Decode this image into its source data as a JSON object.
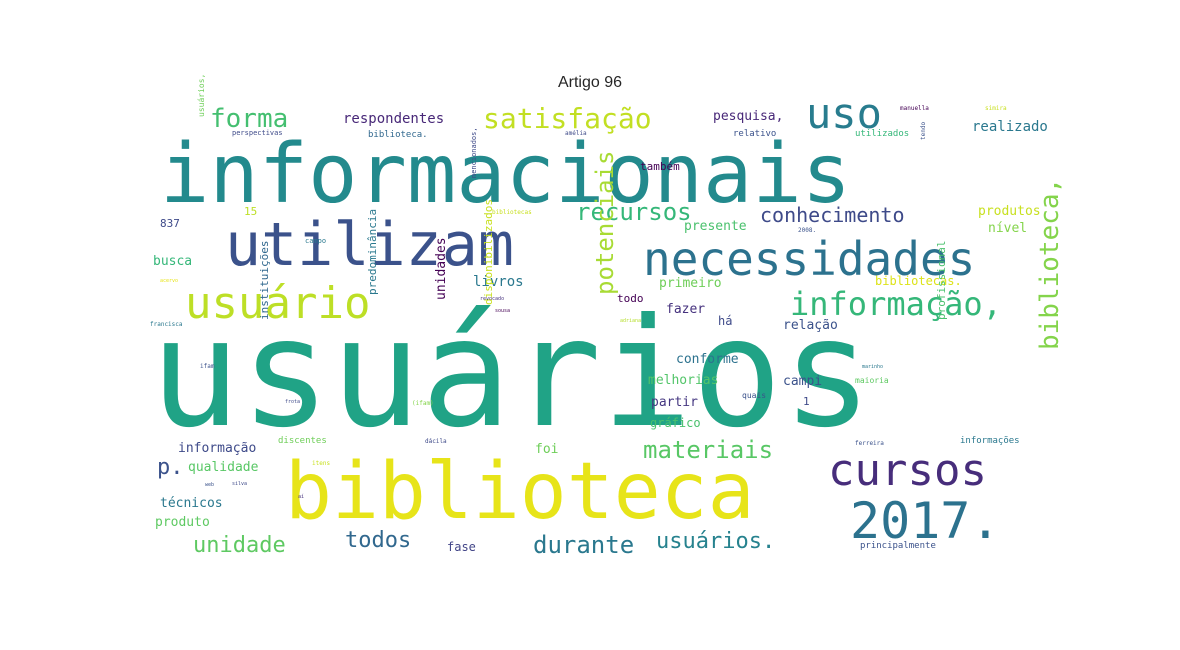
{
  "title": "Artigo 96",
  "words": [
    {
      "text": "usuários",
      "color": "#20a386"
    },
    {
      "text": "informacionais",
      "color": "#238a8d"
    },
    {
      "text": "biblioteca",
      "color": "#e7e419"
    },
    {
      "text": "utilizam",
      "color": "#3b528b"
    },
    {
      "text": "necessidades",
      "color": "#2c728e"
    },
    {
      "text": "usuário",
      "color": "#bddf26"
    },
    {
      "text": "cursos",
      "color": "#472d7b"
    },
    {
      "text": "2017.",
      "color": "#2c728e"
    },
    {
      "text": "uso",
      "color": "#287c8e"
    },
    {
      "text": "informação,",
      "color": "#35b779"
    },
    {
      "text": "satisfação",
      "color": "#c2df23"
    },
    {
      "text": "forma",
      "color": "#44bf70"
    },
    {
      "text": "recursos",
      "color": "#35b779"
    },
    {
      "text": "conhecimento",
      "color": "#3e4a89"
    },
    {
      "text": "materiais",
      "color": "#58c765"
    },
    {
      "text": "biblioteca,",
      "color": "#84d44b"
    },
    {
      "text": "potenciais",
      "color": "#a8db34"
    },
    {
      "text": "durante",
      "color": "#2a788e"
    },
    {
      "text": "usuários.",
      "color": "#26828e"
    },
    {
      "text": "unidade",
      "color": "#5ec962"
    },
    {
      "text": "todos",
      "color": "#31688e"
    },
    {
      "text": "respondentes",
      "color": "#482878"
    },
    {
      "text": "pesquisa,",
      "color": "#482878"
    },
    {
      "text": "realizado",
      "color": "#2a788e"
    },
    {
      "text": "produtos",
      "color": "#c8e020"
    },
    {
      "text": "nível",
      "color": "#84d44b"
    },
    {
      "text": "também",
      "color": "#440154"
    },
    {
      "text": "presente",
      "color": "#4ac16d"
    },
    {
      "text": "primeiro",
      "color": "#6ece58"
    },
    {
      "text": "livros",
      "color": "#2a788e"
    },
    {
      "text": "todo",
      "color": "#440154"
    },
    {
      "text": "fazer",
      "color": "#46327e"
    },
    {
      "text": "há",
      "color": "#3e4a89"
    },
    {
      "text": "relação",
      "color": "#3b528b"
    },
    {
      "text": "bibliotecas.",
      "color": "#dde318"
    },
    {
      "text": "conforme",
      "color": "#2c728e"
    },
    {
      "text": "melhorias",
      "color": "#52c569"
    },
    {
      "text": "campi",
      "color": "#3b528b"
    },
    {
      "text": "partir",
      "color": "#453781"
    },
    {
      "text": "gráfico",
      "color": "#4ac16d"
    },
    {
      "text": "foi",
      "color": "#6ece58"
    },
    {
      "text": "fase",
      "color": "#414487"
    },
    {
      "text": "informação",
      "color": "#3e4a89"
    },
    {
      "text": "qualidade",
      "color": "#58c765"
    },
    {
      "text": "técnicos",
      "color": "#2a788e"
    },
    {
      "text": "produto",
      "color": "#5ec962"
    },
    {
      "text": "p.",
      "color": "#3b528b"
    },
    {
      "text": "busca",
      "color": "#35b779"
    },
    {
      "text": "837",
      "color": "#3e4a89"
    },
    {
      "text": "15",
      "color": "#bddf26"
    },
    {
      "text": "unidades",
      "color": "#440154"
    },
    {
      "text": "instituições",
      "color": "#31688e"
    },
    {
      "text": "predominância",
      "color": "#2a788e"
    },
    {
      "text": "disponibilizados",
      "color": "#c8e020"
    },
    {
      "text": "profissional",
      "color": "#4ac16d"
    },
    {
      "text": "principalmente",
      "color": "#3b528b"
    },
    {
      "text": "informações",
      "color": "#2a788e"
    },
    {
      "text": "discentes",
      "color": "#6ece58"
    },
    {
      "text": "biblioteca.",
      "color": "#31688e"
    },
    {
      "text": "relativo",
      "color": "#3b528b"
    },
    {
      "text": "utilizados",
      "color": "#35b779"
    },
    {
      "text": "maioria",
      "color": "#5ec962"
    },
    {
      "text": "1",
      "color": "#3e4a89"
    },
    {
      "text": "quais",
      "color": "#3b528b"
    },
    {
      "text": "usuários,",
      "color": "#6ece58"
    },
    {
      "text": "perspectivas",
      "color": "#3e4a89"
    },
    {
      "text": "amélia",
      "color": "#3e4a89"
    },
    {
      "text": "manuella",
      "color": "#440154"
    },
    {
      "text": "simira",
      "color": "#c8e020"
    },
    {
      "text": "mencionados,",
      "color": "#3e4a89"
    },
    {
      "text": "tendo",
      "color": "#3b528b"
    },
    {
      "text": "bibliotecas",
      "color": "#c8e020"
    },
    {
      "text": "campo",
      "color": "#2a788e"
    },
    {
      "text": "2008.",
      "color": "#3b528b"
    },
    {
      "text": "acervo",
      "color": "#e7e419"
    },
    {
      "text": "revocado",
      "color": "#46327e"
    },
    {
      "text": "sousa",
      "color": "#440154"
    },
    {
      "text": "adriana",
      "color": "#b5de2b"
    },
    {
      "text": "francisca",
      "color": "#2a788e"
    },
    {
      "text": "ifam",
      "color": "#3b528b"
    },
    {
      "text": "frota",
      "color": "#3e4a89"
    },
    {
      "text": "marinho",
      "color": "#2a788e"
    },
    {
      "text": "(ifam)",
      "color": "#84d44b"
    },
    {
      "text": "ferreira",
      "color": "#3b528b"
    },
    {
      "text": "dácila",
      "color": "#3e4a89"
    },
    {
      "text": "itens",
      "color": "#c8e020"
    },
    {
      "text": "silva",
      "color": "#3e4a89"
    },
    {
      "text": "web",
      "color": "#3b528b"
    },
    {
      "text": "aí",
      "color": "#46327e"
    }
  ]
}
